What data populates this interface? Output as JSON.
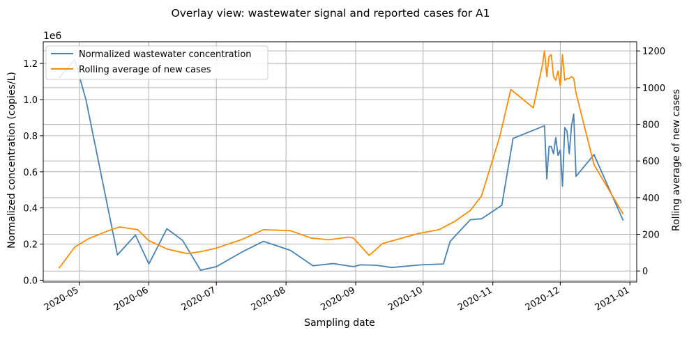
{
  "chart_data": {
    "type": "line",
    "title": "Overlay view: wastewater signal and reported cases for A1",
    "xlabel": "Sampling date",
    "ylabel_left": "Normalized concentration (copies/L)",
    "ylabel_right": "Rolling average of new cases",
    "left_axis_multiplier": "1e6",
    "xlim": [
      "2020-04-15",
      "2021-01-04"
    ],
    "ylim_left": [
      -0.01,
      1.32
    ],
    "ylim_right": [
      -60,
      1250
    ],
    "grid": true,
    "legend_position": "upper-left",
    "x_ticks": [
      {
        "date": "2020-05-01",
        "label": "2020-05"
      },
      {
        "date": "2020-06-01",
        "label": "2020-06"
      },
      {
        "date": "2020-07-01",
        "label": "2020-07"
      },
      {
        "date": "2020-08-01",
        "label": "2020-08"
      },
      {
        "date": "2020-09-01",
        "label": "2020-09"
      },
      {
        "date": "2020-10-01",
        "label": "2020-10"
      },
      {
        "date": "2020-11-01",
        "label": "2020-11"
      },
      {
        "date": "2020-12-01",
        "label": "2020-12"
      },
      {
        "date": "2021-01-01",
        "label": "2021-01"
      }
    ],
    "y_left_ticks": [
      {
        "value": 0.0,
        "label": "0.0"
      },
      {
        "value": 0.2,
        "label": "0.2"
      },
      {
        "value": 0.4,
        "label": "0.4"
      },
      {
        "value": 0.6,
        "label": "0.6"
      },
      {
        "value": 0.8,
        "label": "0.8"
      },
      {
        "value": 1.0,
        "label": "1.0"
      },
      {
        "value": 1.2,
        "label": "1.2"
      }
    ],
    "y_right_ticks": [
      {
        "value": 0,
        "label": "0"
      },
      {
        "value": 200,
        "label": "200"
      },
      {
        "value": 400,
        "label": "400"
      },
      {
        "value": 600,
        "label": "600"
      },
      {
        "value": 800,
        "label": "800"
      },
      {
        "value": 1000,
        "label": "1000"
      },
      {
        "value": 1200,
        "label": "1200"
      }
    ],
    "series": [
      {
        "name": "Normalized wastewater concentration",
        "axis": "left",
        "color": "#4682b4",
        "points": [
          [
            "2020-04-22",
            1.12
          ],
          [
            "2020-04-29",
            1.22
          ],
          [
            "2020-05-04",
            1.0
          ],
          [
            "2020-05-18",
            0.14
          ],
          [
            "2020-05-26",
            0.25
          ],
          [
            "2020-06-01",
            0.09
          ],
          [
            "2020-06-09",
            0.285
          ],
          [
            "2020-06-16",
            0.22
          ],
          [
            "2020-06-24",
            0.055
          ],
          [
            "2020-07-01",
            0.075
          ],
          [
            "2020-07-13",
            0.16
          ],
          [
            "2020-07-22",
            0.215
          ],
          [
            "2020-08-03",
            0.165
          ],
          [
            "2020-08-13",
            0.08
          ],
          [
            "2020-08-22",
            0.092
          ],
          [
            "2020-08-31",
            0.075
          ],
          [
            "2020-09-03",
            0.085
          ],
          [
            "2020-09-10",
            0.083
          ],
          [
            "2020-09-17",
            0.07
          ],
          [
            "2020-09-30",
            0.085
          ],
          [
            "2020-10-10",
            0.09
          ],
          [
            "2020-10-13",
            0.215
          ],
          [
            "2020-10-22",
            0.335
          ],
          [
            "2020-10-27",
            0.34
          ],
          [
            "2020-11-05",
            0.415
          ],
          [
            "2020-11-10",
            0.785
          ],
          [
            "2020-11-20",
            0.835
          ],
          [
            "2020-11-24",
            0.855
          ],
          [
            "2020-11-25",
            0.56
          ],
          [
            "2020-11-26",
            0.74
          ],
          [
            "2020-11-27",
            0.74
          ],
          [
            "2020-11-28",
            0.7
          ],
          [
            "2020-11-29",
            0.79
          ],
          [
            "2020-11-30",
            0.69
          ],
          [
            "2020-12-01",
            0.72
          ],
          [
            "2020-12-02",
            0.52
          ],
          [
            "2020-12-03",
            0.845
          ],
          [
            "2020-12-04",
            0.825
          ],
          [
            "2020-12-05",
            0.7
          ],
          [
            "2020-12-06",
            0.855
          ],
          [
            "2020-12-07",
            0.92
          ],
          [
            "2020-12-08",
            0.575
          ],
          [
            "2020-12-16",
            0.695
          ],
          [
            "2020-12-29",
            0.33
          ]
        ]
      },
      {
        "name": "Rolling average of new cases",
        "axis": "right",
        "color": "#ff8c00",
        "points": [
          [
            "2020-04-22",
            15
          ],
          [
            "2020-04-29",
            130
          ],
          [
            "2020-05-05",
            175
          ],
          [
            "2020-05-14",
            220
          ],
          [
            "2020-05-19",
            240
          ],
          [
            "2020-05-27",
            225
          ],
          [
            "2020-06-01",
            165
          ],
          [
            "2020-06-09",
            120
          ],
          [
            "2020-06-18",
            95
          ],
          [
            "2020-06-24",
            105
          ],
          [
            "2020-07-01",
            125
          ],
          [
            "2020-07-12",
            170
          ],
          [
            "2020-07-22",
            225
          ],
          [
            "2020-08-03",
            220
          ],
          [
            "2020-08-12",
            180
          ],
          [
            "2020-08-20",
            170
          ],
          [
            "2020-08-29",
            185
          ],
          [
            "2020-08-31",
            180
          ],
          [
            "2020-09-07",
            85
          ],
          [
            "2020-09-13",
            150
          ],
          [
            "2020-09-29",
            205
          ],
          [
            "2020-10-08",
            225
          ],
          [
            "2020-10-15",
            270
          ],
          [
            "2020-10-22",
            330
          ],
          [
            "2020-10-27",
            410
          ],
          [
            "2020-11-04",
            730
          ],
          [
            "2020-11-09",
            990
          ],
          [
            "2020-11-19",
            890
          ],
          [
            "2020-11-23",
            1120
          ],
          [
            "2020-11-24",
            1200
          ],
          [
            "2020-11-25",
            1060
          ],
          [
            "2020-11-26",
            1170
          ],
          [
            "2020-11-27",
            1180
          ],
          [
            "2020-11-28",
            1060
          ],
          [
            "2020-11-29",
            1040
          ],
          [
            "2020-11-30",
            1090
          ],
          [
            "2020-12-01",
            1010
          ],
          [
            "2020-12-02",
            1180
          ],
          [
            "2020-12-03",
            1040
          ],
          [
            "2020-12-04",
            1050
          ],
          [
            "2020-12-05",
            1050
          ],
          [
            "2020-12-06",
            1060
          ],
          [
            "2020-12-07",
            1050
          ],
          [
            "2020-12-08",
            970
          ],
          [
            "2020-12-16",
            580
          ],
          [
            "2020-12-29",
            310
          ]
        ]
      }
    ]
  }
}
